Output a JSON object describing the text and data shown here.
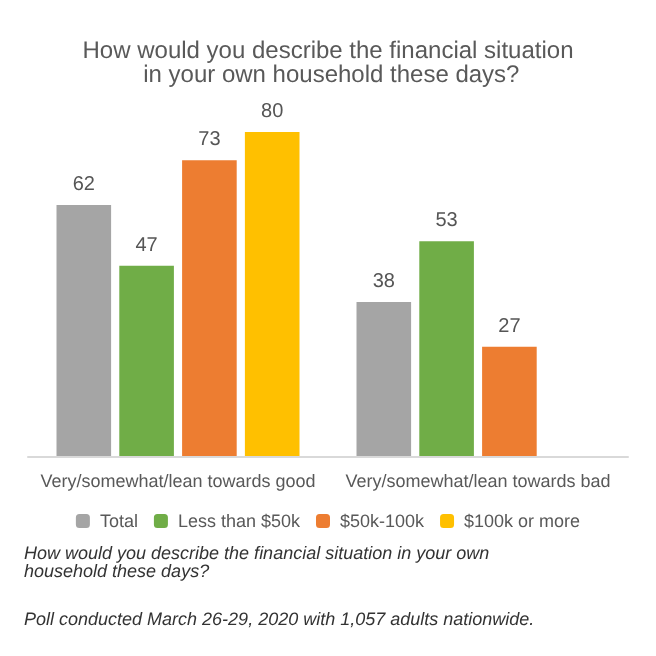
{
  "chart_data": {
    "type": "bar",
    "title": "How would you describe the financial situation in your own household these days?",
    "categories": [
      "Very/somewhat/lean towards good",
      "Very/somewhat/lean towards bad"
    ],
    "series": [
      {
        "name": "Total",
        "color": "#a5a5a5",
        "values": [
          62,
          38
        ]
      },
      {
        "name": "Less than $50k",
        "color": "#70ad47",
        "values": [
          47,
          53
        ]
      },
      {
        "name": "$50k-100k",
        "color": "#ed7d31",
        "values": [
          73,
          27
        ]
      },
      {
        "name": "$100k or more",
        "color": "#ffc000",
        "values": [
          80,
          null
        ]
      }
    ],
    "data_labels": true,
    "legend": "bottom",
    "grid": false,
    "annotations": [
      "How would you describe the financial situation in your own household these days?",
      "Poll conducted March 26-29, 2020 with 1,057 adults nationwide."
    ]
  }
}
